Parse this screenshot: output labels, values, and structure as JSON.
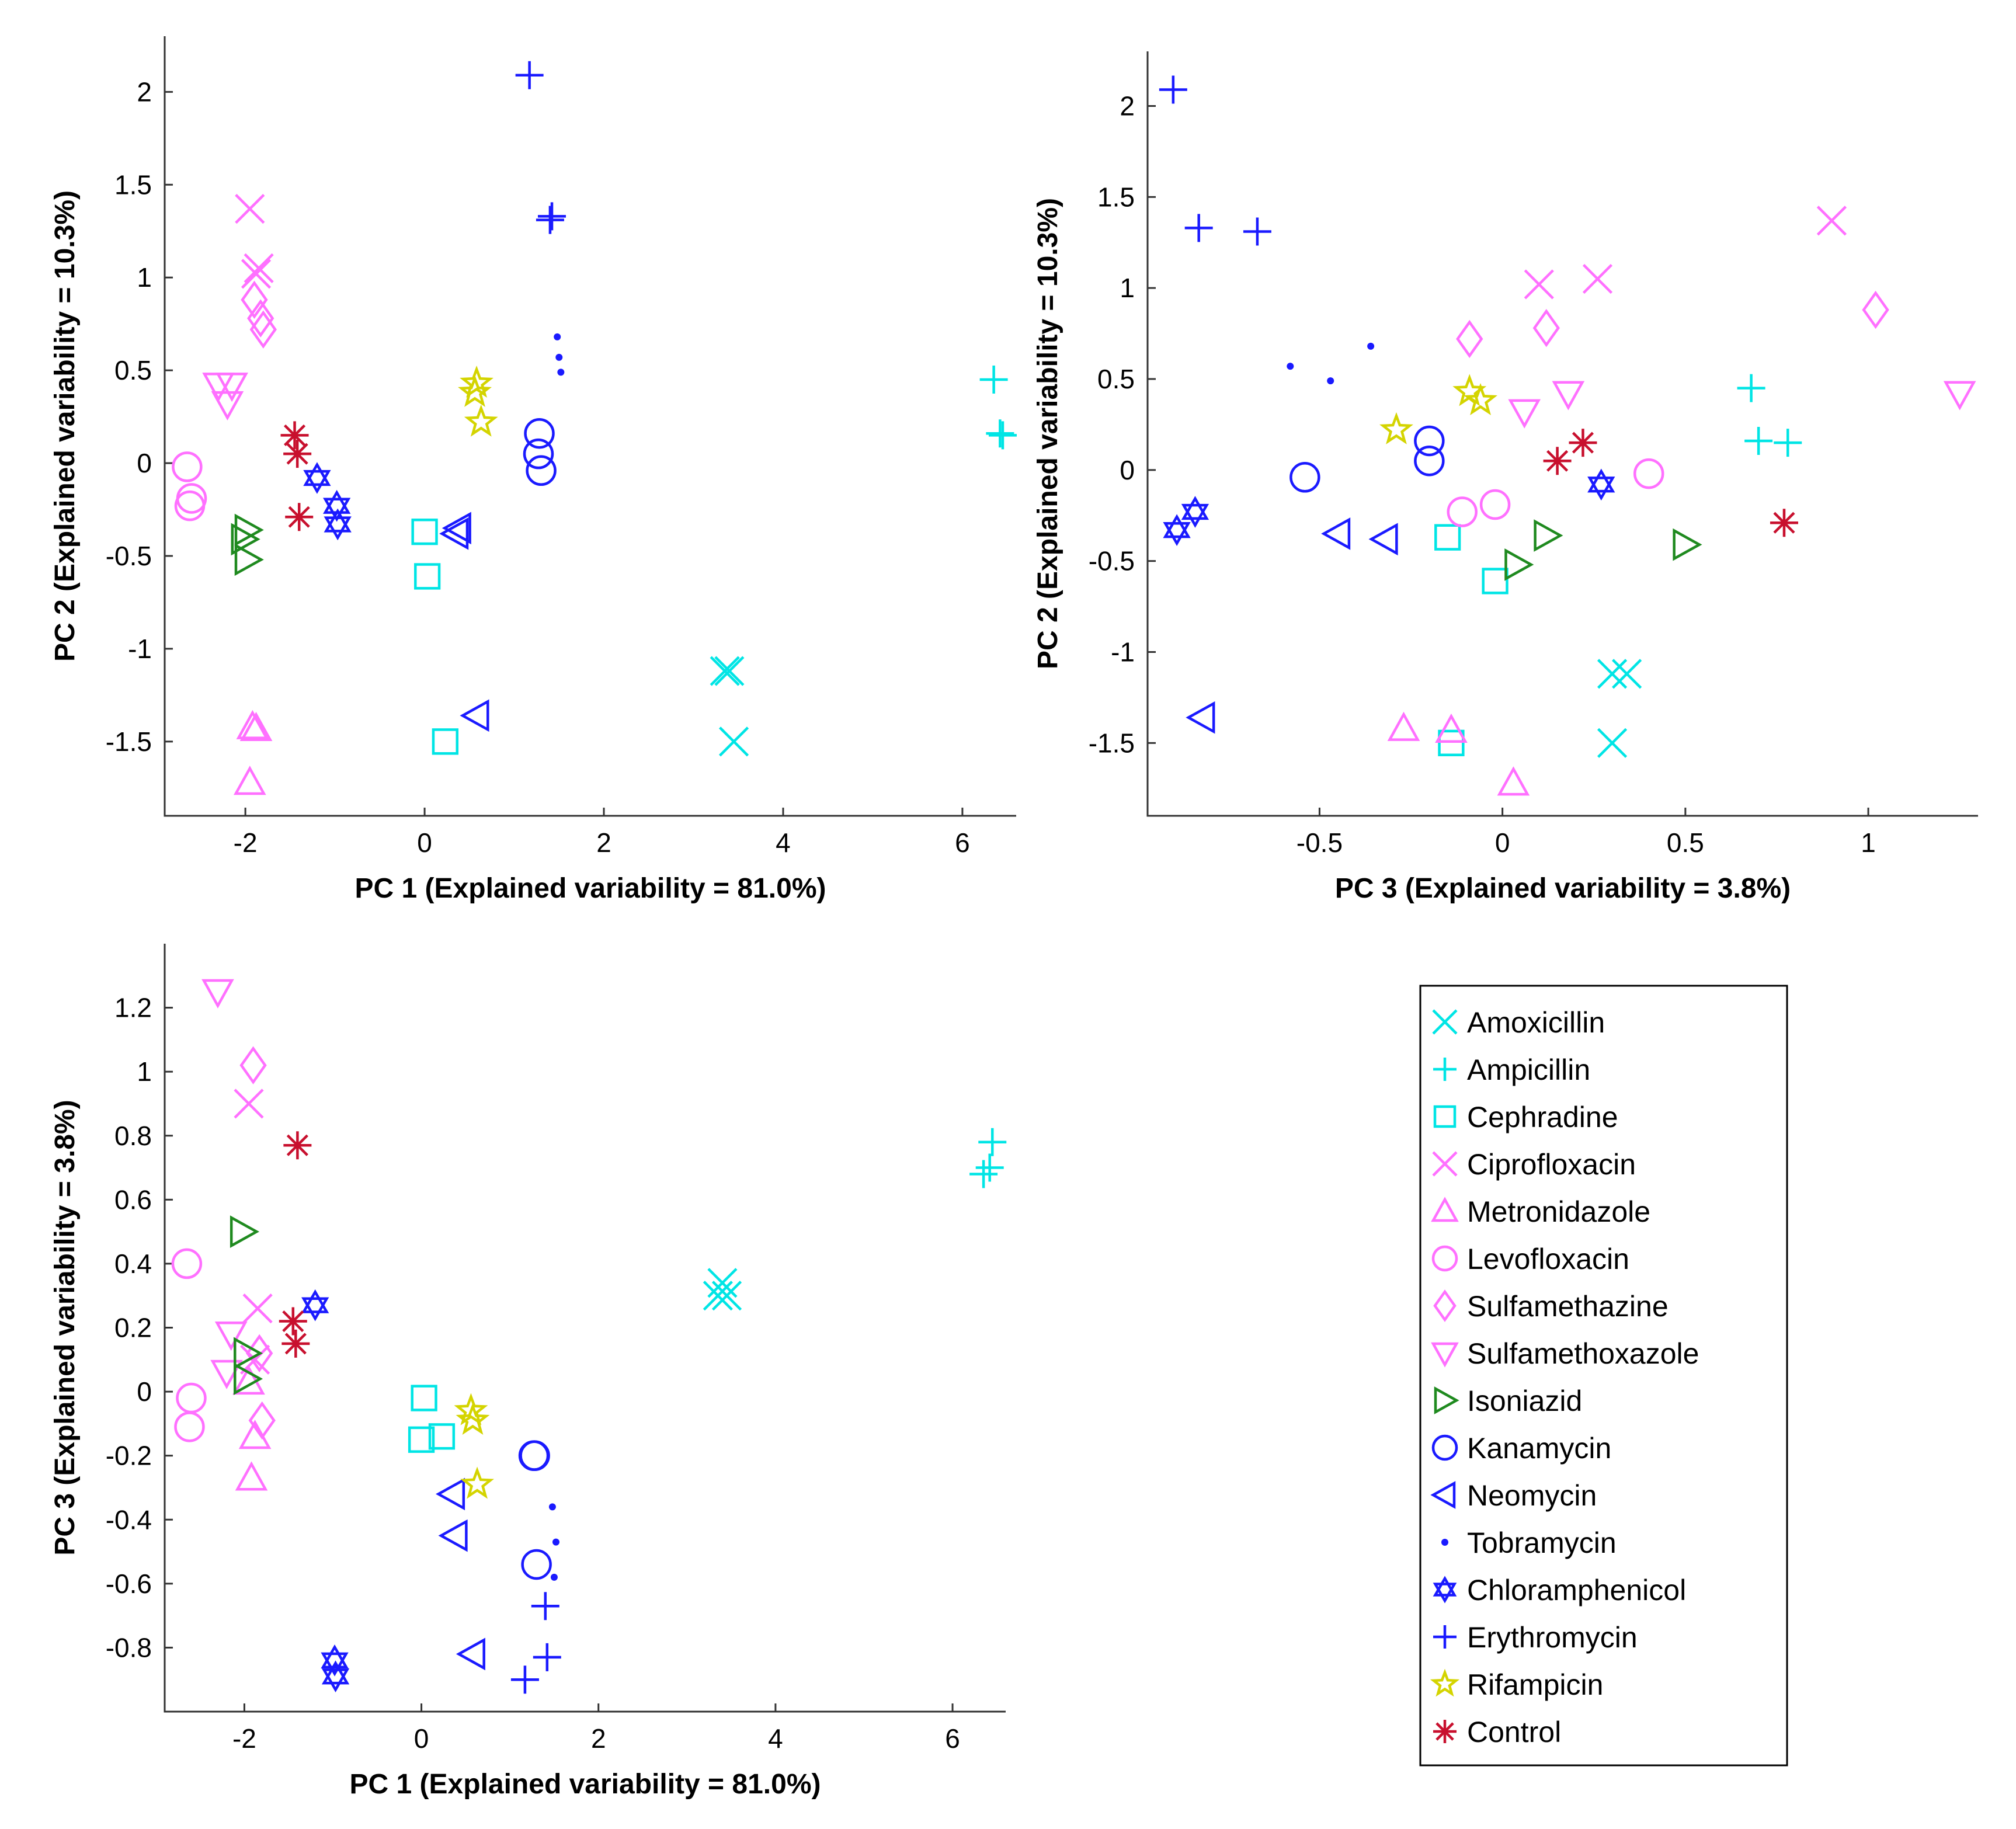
{
  "chart_data": {
    "type": "scatter",
    "series": [
      {
        "name": "Amoxicillin",
        "color": "#00e5e5",
        "marker": "x-icon"
      },
      {
        "name": "Ampicillin",
        "color": "#00e5e5",
        "marker": "plus-icon"
      },
      {
        "name": "Cephradine",
        "color": "#00e5e5",
        "marker": "square-icon"
      },
      {
        "name": "Ciprofloxacin",
        "color": "#ff70ff",
        "marker": "x-icon"
      },
      {
        "name": "Metronidazole",
        "color": "#ff70ff",
        "marker": "triangle-up-icon"
      },
      {
        "name": "Levofloxacin",
        "color": "#ff70ff",
        "marker": "circle-icon"
      },
      {
        "name": "Sulfamethazine",
        "color": "#ff70ff",
        "marker": "diamond-icon"
      },
      {
        "name": "Sulfamethoxazole",
        "color": "#ff70ff",
        "marker": "triangle-down-icon"
      },
      {
        "name": "Isoniazid",
        "color": "#1f8a1f",
        "marker": "triangle-right-icon"
      },
      {
        "name": "Kanamycin",
        "color": "#1a1aff",
        "marker": "circle-icon"
      },
      {
        "name": "Neomycin",
        "color": "#1a1aff",
        "marker": "triangle-left-icon"
      },
      {
        "name": "Tobramycin",
        "color": "#1a1aff",
        "marker": "dot-icon"
      },
      {
        "name": "Chloramphenicol",
        "color": "#1a1aff",
        "marker": "hexagram-icon"
      },
      {
        "name": "Erythromycin",
        "color": "#1a1aff",
        "marker": "plus-icon"
      },
      {
        "name": "Rifampicin",
        "color": "#d4d400",
        "marker": "pentagram-icon"
      },
      {
        "name": "Control",
        "color": "#c8102e",
        "marker": "asterisk-icon"
      }
    ],
    "samples": {
      "Amoxicillin": [
        [
          3.35,
          -1.12,
          0.3
        ],
        [
          3.4,
          -1.12,
          0.34
        ],
        [
          3.45,
          -1.5,
          0.3
        ]
      ],
      "Ampicillin": [
        [
          6.35,
          0.45,
          0.68
        ],
        [
          6.42,
          0.16,
          0.7
        ],
        [
          6.45,
          0.15,
          0.78
        ]
      ],
      "Cephradine": [
        [
          0.0,
          -0.37,
          -0.15
        ],
        [
          0.03,
          -0.61,
          -0.02
        ],
        [
          0.23,
          -1.5,
          -0.14
        ]
      ],
      "Ciprofloxacin": [
        [
          -1.95,
          1.37,
          0.9
        ],
        [
          -1.88,
          1.02,
          0.1
        ],
        [
          -1.85,
          1.05,
          0.26
        ]
      ],
      "Metronidazole": [
        [
          -1.92,
          -1.42,
          -0.27
        ],
        [
          -1.88,
          -1.43,
          -0.14
        ],
        [
          -1.95,
          -1.72,
          0.03
        ]
      ],
      "Levofloxacin": [
        [
          -2.65,
          -0.02,
          0.4
        ],
        [
          -2.62,
          -0.23,
          -0.11
        ],
        [
          -2.6,
          -0.19,
          -0.02
        ]
      ],
      "Sulfamethazine": [
        [
          -1.8,
          0.72,
          -0.09
        ],
        [
          -1.83,
          0.78,
          0.12
        ],
        [
          -1.9,
          0.88,
          1.02
        ]
      ],
      "Sulfamethoxazole": [
        [
          -2.3,
          0.42,
          1.25
        ],
        [
          -2.2,
          0.32,
          0.06
        ],
        [
          -2.15,
          0.42,
          0.18
        ]
      ],
      "Isoniazid": [
        [
          -1.98,
          -0.52,
          0.04
        ],
        [
          -1.98,
          -0.36,
          0.12
        ],
        [
          -2.02,
          -0.41,
          0.5
        ]
      ],
      "Kanamycin": [
        [
          1.27,
          0.05,
          -0.2
        ],
        [
          1.28,
          0.16,
          -0.2
        ],
        [
          1.3,
          -0.04,
          -0.54
        ]
      ],
      "Neomycin": [
        [
          0.35,
          -0.38,
          -0.32
        ],
        [
          0.38,
          -0.35,
          -0.45
        ],
        [
          0.58,
          -1.36,
          -0.82
        ]
      ],
      "Tobramycin": [
        [
          1.48,
          0.68,
          -0.36
        ],
        [
          1.5,
          0.57,
          -0.58
        ],
        [
          1.52,
          0.49,
          -0.47
        ]
      ],
      "Chloramphenicol": [
        [
          -1.2,
          -0.08,
          0.27
        ],
        [
          -0.98,
          -0.23,
          -0.84
        ],
        [
          -0.97,
          -0.33,
          -0.89
        ]
      ],
      "Erythromycin": [
        [
          1.17,
          2.09,
          -0.9
        ],
        [
          1.4,
          1.31,
          -0.67
        ],
        [
          1.42,
          1.33,
          -0.83
        ]
      ],
      "Rifampicin": [
        [
          0.56,
          0.38,
          -0.06
        ],
        [
          0.58,
          0.43,
          -0.09
        ],
        [
          0.63,
          0.22,
          -0.29
        ]
      ],
      "Control": [
        [
          -1.45,
          0.15,
          0.22
        ],
        [
          -1.42,
          0.05,
          0.15
        ],
        [
          -1.4,
          -0.29,
          0.77
        ]
      ]
    },
    "panels": [
      {
        "id": "pc1-vs-pc2",
        "x_component": 0,
        "y_component": 1,
        "xlabel": "PC 1 (Explained variability = 81.0%)",
        "ylabel": "PC 2 (Explained variability = 10.3%)",
        "xlim": [
          -2.9,
          6.6
        ],
        "ylim": [
          -1.9,
          2.3
        ],
        "xticks": [
          -2,
          0,
          2,
          4,
          6
        ],
        "yticks": [
          2,
          1.5,
          1,
          0.5,
          0,
          -0.5,
          -1,
          -1.5
        ],
        "xtick_labels": [
          "-2",
          "0",
          "2",
          "4",
          "6"
        ],
        "ytick_labels": [
          "2",
          "1.5",
          "1",
          "0.5",
          "0",
          "-0.5",
          "-1",
          "-1.5"
        ]
      },
      {
        "id": "pc3-vs-pc2",
        "x_component": 2,
        "y_component": 1,
        "xlabel": "PC 3 (Explained variability = 3.8%)",
        "ylabel": "PC 2 (Explained variability = 10.3%)",
        "xlim": [
          -0.97,
          1.3
        ],
        "ylim": [
          -1.9,
          2.3
        ],
        "xticks": [
          -0.5,
          0,
          0.5,
          1
        ],
        "yticks": [
          2,
          1.5,
          1,
          0.5,
          0,
          -0.5,
          -1,
          -1.5
        ],
        "xtick_labels": [
          "-0.5",
          "0",
          "0.5",
          "1"
        ],
        "ytick_labels": [
          "2",
          "1.5",
          "1",
          "0.5",
          "0",
          "-0.5",
          "-1",
          "-1.5"
        ]
      },
      {
        "id": "pc1-vs-pc3",
        "x_component": 0,
        "y_component": 2,
        "xlabel": "PC 1 (Explained variability = 81.0%)",
        "ylabel": "PC 3 (Explained variability = 3.8%)",
        "xlim": [
          -2.9,
          6.6
        ],
        "ylim": [
          -1.0,
          1.4
        ],
        "xticks": [
          -2,
          0,
          2,
          4,
          6
        ],
        "yticks": [
          1.2,
          1,
          0.8,
          0.6,
          0.4,
          0.2,
          0,
          -0.2,
          -0.4,
          -0.6,
          -0.8
        ],
        "xtick_labels": [
          "-2",
          "0",
          "2",
          "4",
          "6"
        ],
        "ytick_labels": [
          "1.2",
          "1",
          "0.8",
          "0.6",
          "0.4",
          "0.2",
          "0",
          "-0.2",
          "-0.4",
          "-0.6",
          "-0.8"
        ]
      }
    ],
    "legend": {
      "position": "bottom-right"
    }
  }
}
